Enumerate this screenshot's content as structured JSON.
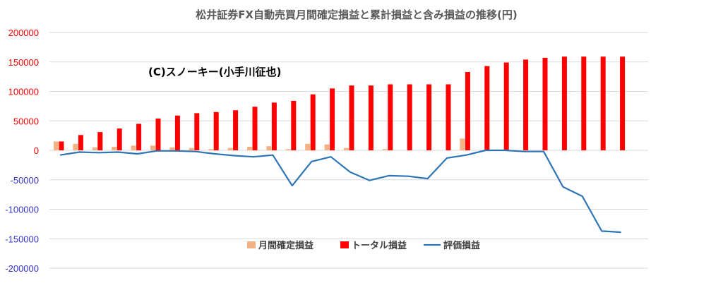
{
  "chart_data": {
    "type": "bar",
    "title": "松井証券FX自動売買月間確定損益と累計損益と含み損益の推移(円)",
    "annotation": "(C)スノーキー(小手川征也)",
    "ylim": [
      -200000,
      200000
    ],
    "y_ticks": [
      "200000",
      "150000",
      "100000",
      "50000",
      "0",
      "-50000",
      "-100000",
      "-150000",
      "-200000"
    ],
    "y_tick_values": [
      200000,
      150000,
      100000,
      50000,
      0,
      -50000,
      -100000,
      -150000,
      -200000
    ],
    "grid": true,
    "legend_position": "bottom-center",
    "num_periods": 30,
    "series": [
      {
        "name": "月間確定損益",
        "kind": "bar",
        "color": "#F4B183",
        "values": [
          15000,
          11000,
          5000,
          6000,
          8000,
          8000,
          5000,
          4000,
          2000,
          4000,
          6000,
          7000,
          2000,
          11000,
          10000,
          4000,
          0,
          2000,
          0,
          0,
          0,
          20000,
          0,
          0,
          0,
          0,
          0,
          0,
          0,
          0
        ]
      },
      {
        "name": "トータル損益",
        "kind": "bar",
        "color": "#FF0000",
        "values": [
          15000,
          26000,
          31000,
          37000,
          45000,
          54000,
          59000,
          63000,
          65000,
          68000,
          74000,
          81000,
          84000,
          95000,
          105000,
          110000,
          110000,
          112000,
          112000,
          112000,
          112000,
          133000,
          143000,
          149000,
          154000,
          157000,
          159000,
          159000,
          159000,
          159000
        ]
      },
      {
        "name": "評価損益",
        "kind": "line",
        "color": "#2E75B6",
        "values": [
          -8000,
          -3000,
          -4000,
          -3000,
          -6000,
          -1000,
          -1000,
          -2000,
          -6000,
          -9000,
          -11000,
          -8000,
          -60000,
          -19000,
          -11000,
          -37000,
          -51000,
          -43000,
          -44000,
          -48000,
          -13000,
          -8000,
          0,
          0,
          -2000,
          -2000,
          -62000,
          -78000,
          -137000,
          -139000
        ]
      }
    ]
  }
}
